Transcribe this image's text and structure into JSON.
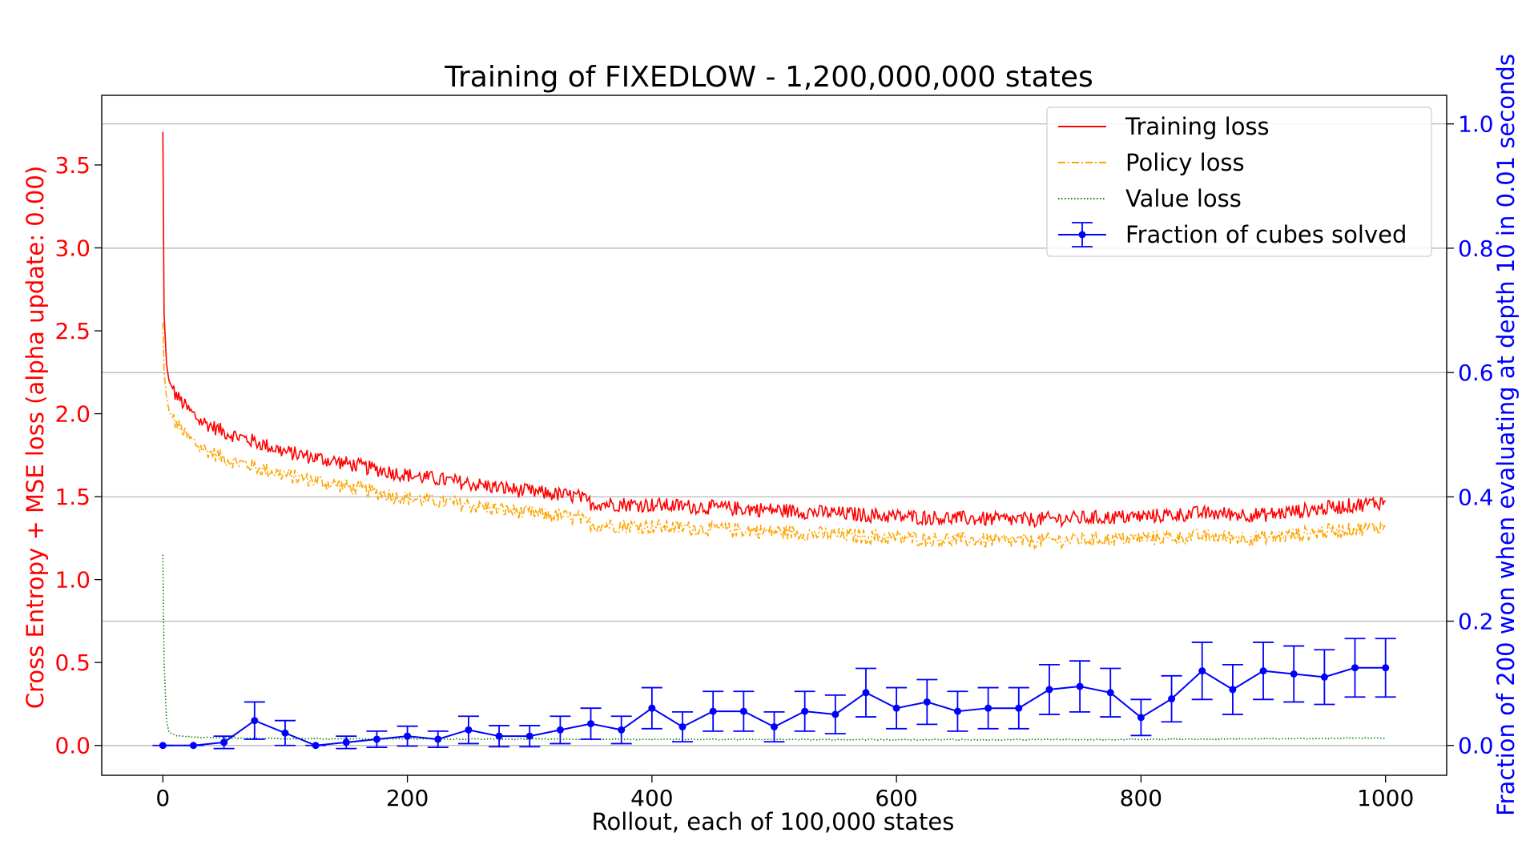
{
  "chart_data": {
    "type": "line",
    "title": "Training of FIXEDLOW - 1,200,000,000 states",
    "xlabel": "Rollout, each of 100,000 states",
    "ylabel_left": "Cross Entropy + MSE loss (alpha update: 0.00)",
    "ylabel_right": "Fraction of 200 won when evaluating at depth 10 in 0.01 seconds",
    "xlim": [
      -50,
      1050
    ],
    "ylim_left": [
      -0.18,
      3.92
    ],
    "ylim_right": [
      -0.048,
      1.046
    ],
    "x_ticks": [
      0,
      200,
      400,
      600,
      800,
      1000
    ],
    "x_tick_labels": [
      "0",
      "200",
      "400",
      "600",
      "800",
      "1000"
    ],
    "y_left_ticks": [
      0.0,
      0.5,
      1.0,
      1.5,
      2.0,
      2.5,
      3.0,
      3.5
    ],
    "y_left_tick_labels": [
      "0.0",
      "0.5",
      "1.0",
      "1.5",
      "2.0",
      "2.5",
      "3.0",
      "3.5"
    ],
    "y_right_ticks": [
      0.0,
      0.2,
      0.4,
      0.6,
      0.8,
      1.0
    ],
    "y_right_tick_labels": [
      "0.0",
      "0.2",
      "0.4",
      "0.6",
      "0.8",
      "1.0"
    ],
    "grid": "horizontal lines at right-axis ticks",
    "legend_position": "top-right",
    "colors": {
      "training_loss": "#ff0000",
      "policy_loss": "#ffa500",
      "value_loss": "#008000",
      "fraction_solved": "#0000ff",
      "left_axis": "#ff0000",
      "right_axis": "#0000ff",
      "grid": "#b0b0b0"
    },
    "loss_series_anchors": {
      "x": [
        0,
        1,
        3,
        5,
        10,
        20,
        30,
        50,
        80,
        100,
        150,
        200,
        250,
        300,
        340,
        350,
        400,
        500,
        600,
        650,
        700,
        800,
        850,
        900,
        950,
        1000
      ],
      "training_loss": [
        3.7,
        2.6,
        2.3,
        2.2,
        2.12,
        2.03,
        1.96,
        1.89,
        1.82,
        1.77,
        1.7,
        1.63,
        1.58,
        1.53,
        1.5,
        1.46,
        1.45,
        1.42,
        1.38,
        1.37,
        1.36,
        1.38,
        1.4,
        1.39,
        1.43,
        1.47
      ],
      "policy_loss": [
        2.55,
        2.25,
        2.1,
        2.02,
        1.95,
        1.86,
        1.8,
        1.73,
        1.67,
        1.63,
        1.56,
        1.49,
        1.45,
        1.4,
        1.37,
        1.33,
        1.32,
        1.29,
        1.25,
        1.24,
        1.23,
        1.25,
        1.26,
        1.25,
        1.29,
        1.32
      ],
      "value_loss": [
        1.15,
        0.5,
        0.15,
        0.08,
        0.06,
        0.055,
        0.05,
        0.045,
        0.042,
        0.04,
        0.04,
        0.04,
        0.038,
        0.038,
        0.038,
        0.037,
        0.037,
        0.036,
        0.035,
        0.035,
        0.035,
        0.036,
        0.038,
        0.04,
        0.042,
        0.045
      ]
    },
    "series": [
      {
        "name": "Training loss",
        "axis": "left",
        "style": "solid"
      },
      {
        "name": "Policy loss",
        "axis": "left",
        "style": "dashdot"
      },
      {
        "name": "Value loss",
        "axis": "left",
        "style": "dotted"
      },
      {
        "name": "Fraction of cubes solved",
        "axis": "right",
        "style": "solid-markers-errorbars",
        "x": [
          0,
          25,
          50,
          75,
          100,
          125,
          150,
          175,
          200,
          225,
          250,
          275,
          300,
          325,
          350,
          375,
          400,
          425,
          450,
          475,
          500,
          525,
          550,
          575,
          600,
          625,
          650,
          675,
          700,
          725,
          750,
          775,
          800,
          825,
          850,
          875,
          900,
          925,
          950,
          975,
          1000
        ],
        "y": [
          0.0,
          0.0,
          0.005,
          0.04,
          0.02,
          0.0,
          0.005,
          0.01,
          0.015,
          0.01,
          0.025,
          0.015,
          0.015,
          0.025,
          0.035,
          0.025,
          0.06,
          0.03,
          0.055,
          0.055,
          0.03,
          0.055,
          0.05,
          0.085,
          0.06,
          0.07,
          0.055,
          0.06,
          0.06,
          0.09,
          0.095,
          0.085,
          0.045,
          0.075,
          0.12,
          0.09,
          0.12,
          0.115,
          0.11,
          0.125,
          0.125
        ],
        "err": [
          0.0,
          0.0,
          0.01,
          0.03,
          0.02,
          0.0,
          0.01,
          0.013,
          0.016,
          0.013,
          0.022,
          0.017,
          0.017,
          0.022,
          0.025,
          0.022,
          0.033,
          0.024,
          0.032,
          0.032,
          0.024,
          0.032,
          0.031,
          0.039,
          0.033,
          0.036,
          0.032,
          0.033,
          0.033,
          0.04,
          0.041,
          0.039,
          0.029,
          0.037,
          0.046,
          0.04,
          0.046,
          0.045,
          0.044,
          0.047,
          0.047
        ]
      }
    ]
  }
}
